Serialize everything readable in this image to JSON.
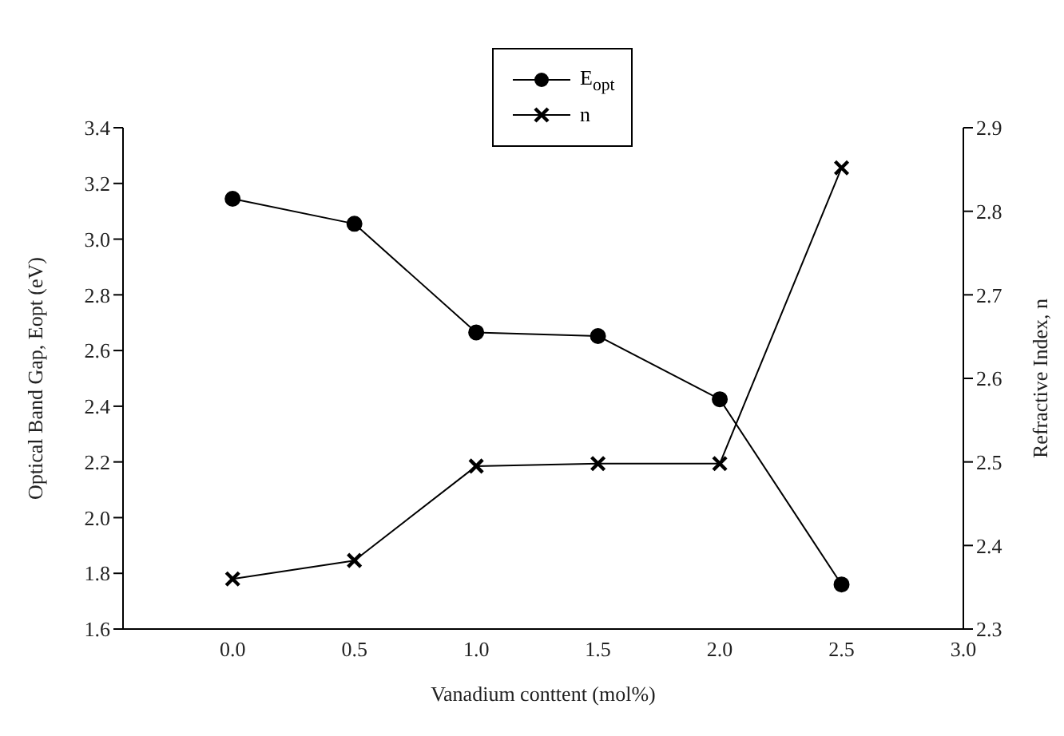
{
  "chart_data": {
    "type": "line",
    "xlabel": "Vanadium conttent (mol%)",
    "ylabel": "Optical Band Gap, Eopt (eV)",
    "y2label": "Refractive Index, n",
    "x": [
      0,
      0.5,
      1.0,
      1.5,
      2.0,
      2.5
    ],
    "series": [
      {
        "name": "E$_{opt}$",
        "color": "#000000",
        "marker": "circle",
        "values": [
          3.145,
          3.055,
          2.665,
          2.652,
          2.425,
          1.76
        ]
      },
      {
        "name": "n",
        "color": "#000000",
        "marker": "cross",
        "axis": "y2",
        "values": [
          2.36,
          2.382,
          2.495,
          2.498,
          2.498,
          2.852
        ]
      }
    ],
    "xlim": [
      -0.45,
      3.0
    ],
    "xticks": [
      {
        "value": 0,
        "label": "0.0"
      },
      0.5,
      {
        "value": 1,
        "label": "1.0"
      },
      1.5,
      {
        "value": 2,
        "label": "2.0"
      },
      2.5,
      {
        "value": 3,
        "label": "3.0"
      }
    ],
    "ylim": [
      1.6,
      3.4
    ],
    "yticks": [
      1.6,
      1.8,
      {
        "value": 2,
        "label": "2.0"
      },
      2.2,
      2.4,
      2.6,
      2.8,
      {
        "value": 3,
        "label": "3.0"
      },
      3.2,
      3.4
    ],
    "y2lim": [
      2.3,
      2.9
    ],
    "y2ticks": [
      2.3,
      2.4,
      2.5,
      2.6,
      2.7,
      2.8,
      2.9
    ],
    "grid": false,
    "legend": "top",
    "line_style": "solid"
  }
}
